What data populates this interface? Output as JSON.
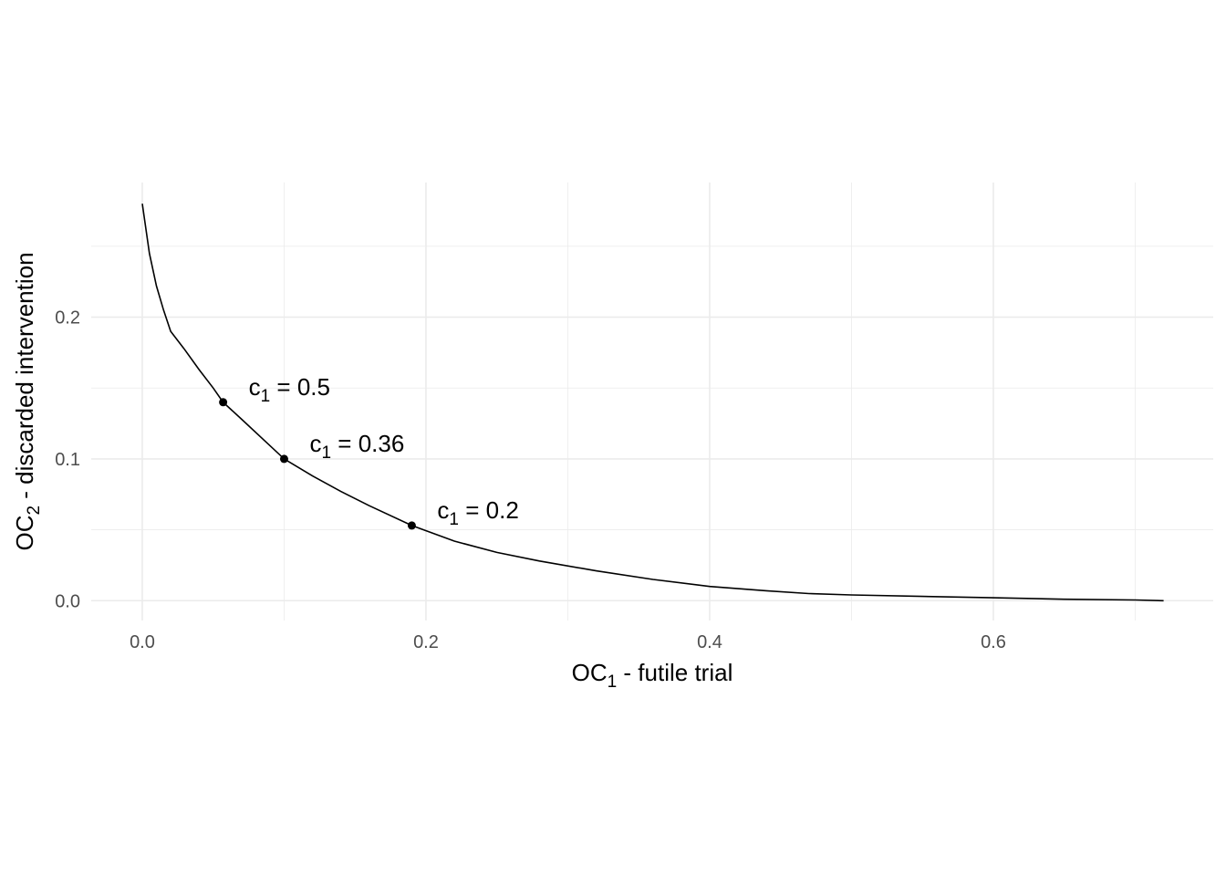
{
  "chart_data": {
    "type": "line",
    "title": "",
    "xlabel": {
      "main": "OC",
      "sub": "1",
      "rest": " - futile trial"
    },
    "ylabel": {
      "main": "OC",
      "sub": "2",
      "rest": " - discarded intervention"
    },
    "xlim": [
      -0.036,
      0.755
    ],
    "ylim": [
      -0.014,
      0.295
    ],
    "x_ticks": [
      0.0,
      0.2,
      0.4,
      0.6
    ],
    "x_tick_labels": [
      "0.0",
      "0.2",
      "0.4",
      "0.6"
    ],
    "y_ticks": [
      0.0,
      0.1,
      0.2
    ],
    "y_tick_labels": [
      "0.0",
      "0.1",
      "0.2"
    ],
    "grid": true,
    "series": [
      {
        "x": [
          0.0,
          0.005,
          0.01,
          0.015,
          0.02,
          0.03,
          0.04,
          0.05,
          0.057,
          0.07,
          0.085,
          0.1,
          0.12,
          0.14,
          0.16,
          0.19,
          0.22,
          0.25,
          0.28,
          0.32,
          0.36,
          0.4,
          0.44,
          0.47,
          0.5,
          0.55,
          0.6,
          0.65,
          0.7,
          0.72
        ],
        "y": [
          0.28,
          0.245,
          0.222,
          0.205,
          0.19,
          0.177,
          0.163,
          0.15,
          0.14,
          0.128,
          0.114,
          0.1,
          0.088,
          0.077,
          0.067,
          0.053,
          0.042,
          0.034,
          0.028,
          0.021,
          0.015,
          0.01,
          0.007,
          0.005,
          0.004,
          0.003,
          0.002,
          0.001,
          0.0005,
          0.0
        ]
      }
    ],
    "points": [
      {
        "x": 0.057,
        "y": 0.14,
        "label_var": "c",
        "label_sub": "1",
        "label_eq": " = ",
        "label_val": "0.5"
      },
      {
        "x": 0.1,
        "y": 0.1,
        "label_var": "c",
        "label_sub": "1",
        "label_eq": " = ",
        "label_val": "0.36"
      },
      {
        "x": 0.19,
        "y": 0.053,
        "label_var": "c",
        "label_sub": "1",
        "label_eq": " = ",
        "label_val": "0.2"
      }
    ],
    "colors": {
      "line": "#000000",
      "grid": "#ebebeb",
      "tick_text": "#4d4d4d"
    }
  }
}
